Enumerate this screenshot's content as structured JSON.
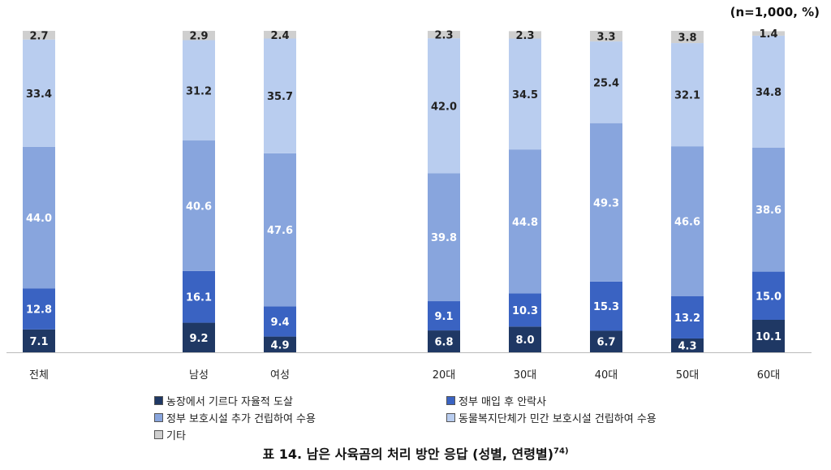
{
  "chart_data": {
    "type": "bar",
    "stacked": true,
    "title": "표 14. 남은 사육곰의 처리 방안 응답 (성별, 연령별)",
    "title_note": "74)",
    "unit_label": "(n=1,000, %)",
    "categories": [
      "전체",
      "남성",
      "여성",
      "20대",
      "30대",
      "40대",
      "50대",
      "60대"
    ],
    "ylim": [
      0,
      100
    ],
    "legend_position": "bottom",
    "series": [
      {
        "name": "농장에서 기르다 자율적 도살",
        "color": "#1f3864",
        "values": [
          7.1,
          9.2,
          4.9,
          6.8,
          8.0,
          6.7,
          4.3,
          10.1
        ]
      },
      {
        "name": "정부 매입 후 안락사",
        "color": "#3a63c2",
        "values": [
          12.8,
          16.1,
          9.4,
          9.1,
          10.3,
          15.3,
          13.2,
          15.0
        ]
      },
      {
        "name": "정부 보호시설 추가 건립하여 수용",
        "color": "#88a5dd",
        "values": [
          44.0,
          40.6,
          47.6,
          39.8,
          44.8,
          49.3,
          46.6,
          38.6
        ]
      },
      {
        "name": "동물복지단체가 민간 보호시설 건립하여 수용",
        "color": "#b9cdef",
        "values": [
          33.4,
          31.2,
          35.7,
          42.0,
          34.5,
          25.4,
          32.1,
          34.8
        ]
      },
      {
        "name": "기타",
        "color": "#cfcfcf",
        "values": [
          2.7,
          2.9,
          2.4,
          2.3,
          2.3,
          3.3,
          3.8,
          1.4
        ]
      }
    ]
  }
}
